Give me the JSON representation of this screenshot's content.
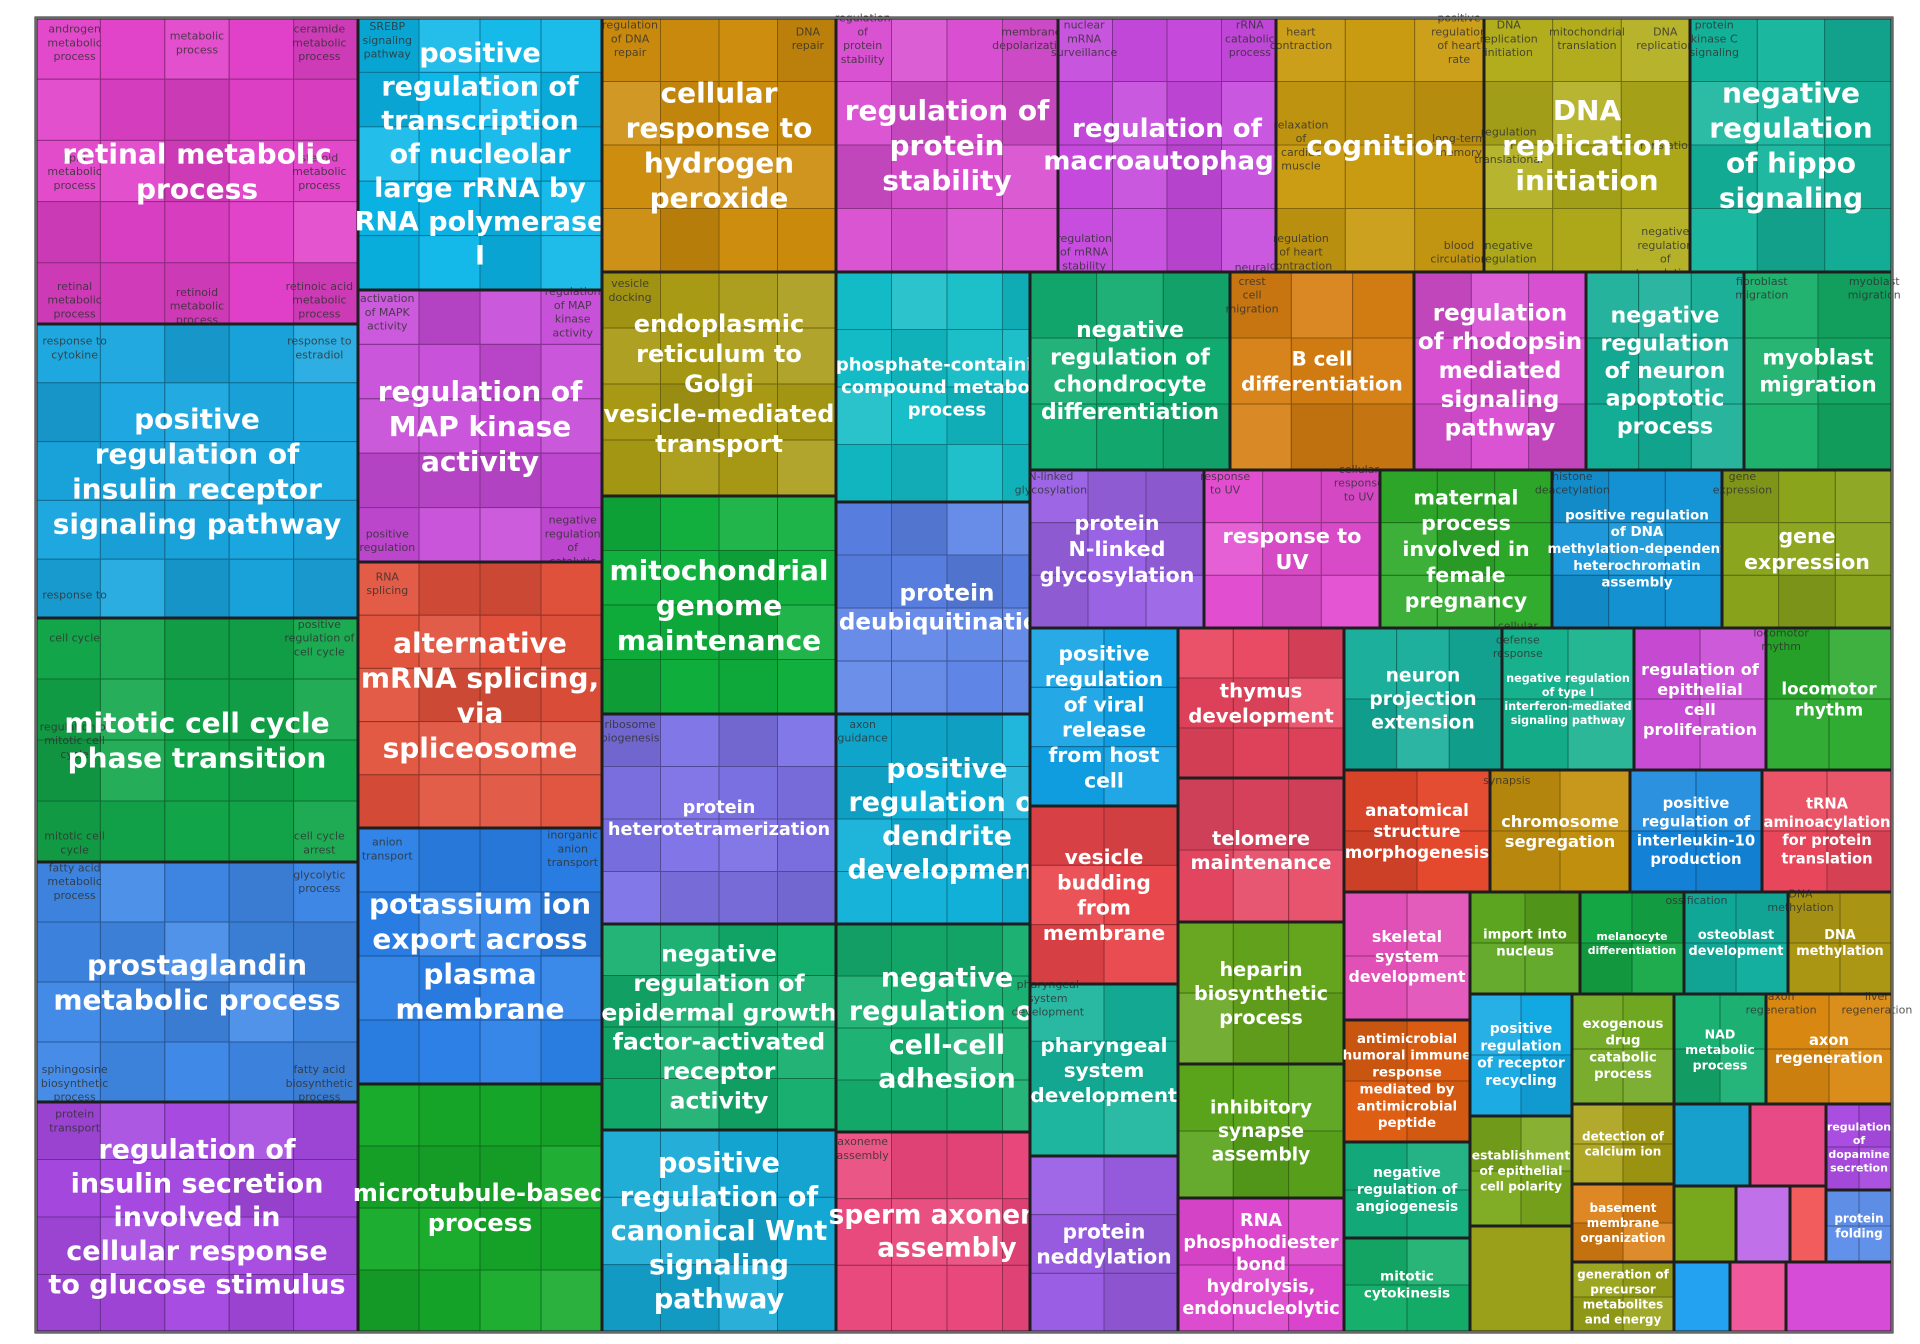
{
  "chart_data": {
    "type": "treemap",
    "title": "",
    "groups": [
      {
        "name": "retinal metabolic process",
        "color": "#e040c8",
        "subterms": [
          "androgen metabolic process",
          "ceramide metabolic process",
          "retinal metabolic process",
          "retinoic acid metabolic process",
          "lipid metabolic process",
          "steroid metabolic process",
          "metabolic process",
          "retinoid metabolic process"
        ]
      },
      {
        "name": "positive regulation of insulin receptor signaling pathway",
        "color": "#1aa6df",
        "subterms": [
          "response to cytokine",
          "response to estradiol",
          "response to"
        ]
      },
      {
        "name": "mitotic cell cycle phase transition",
        "color": "#12a64a",
        "subterms": [
          "cell cycle",
          "positive regulation of cell cycle",
          "mitotic cell cycle",
          "cell cycle arrest",
          "regulation of mitotic cell cycle"
        ]
      },
      {
        "name": "prostaglandin metabolic process",
        "color": "#3f88e6",
        "subterms": [
          "fatty acid metabolic process",
          "glycolytic process",
          "sphingosine biosynthetic process",
          "fatty acid biosynthetic process"
        ]
      },
      {
        "name": "regulation of insulin secretion involved in cellular response to glucose stimulus",
        "color": "#a548e0",
        "subterms": [
          "protein transport"
        ]
      },
      {
        "name": "positive regulation of transcription of nucleolar large rRNA by RNA polymerase I",
        "color": "#0ab6e8",
        "subterms": [
          "SREBP signaling pathway"
        ]
      },
      {
        "name": "regulation of MAP kinase activity",
        "color": "#c64ad8",
        "subterms": [
          "activation of MAPK activity",
          "regulation of MAP kinase activity",
          "positive regulation",
          "negative regulation of catalytic activity"
        ]
      },
      {
        "name": "alternative mRNA splicing, via spliceosome",
        "color": "#e0503a",
        "subterms": [
          "RNA splicing"
        ]
      },
      {
        "name": "potassium ion export across plasma membrane",
        "color": "#2a7fe6",
        "subterms": [
          "anion transport",
          "inorganic anion transport"
        ]
      },
      {
        "name": "microtubule-based process",
        "color": "#16aa2a",
        "subterms": []
      },
      {
        "name": "cellular response to hydrogen peroxide",
        "color": "#cc8c0c",
        "subterms": [
          "regulation of DNA repair",
          "DNA repair"
        ]
      },
      {
        "name": "endoplasmic reticulum to Golgi vesicle-mediated transport",
        "color": "#a89a14",
        "subterms": [
          "vesicle docking"
        ]
      },
      {
        "name": "mitochondrial genome maintenance",
        "color": "#0eae3c",
        "subterms": []
      },
      {
        "name": "protein heterotetramerization",
        "color": "#7e72e6",
        "subterms": [
          "ribosome biogenesis"
        ]
      },
      {
        "name": "negative regulation of epidermal growth factor-activated receptor activity",
        "color": "#12ad6c",
        "subterms": []
      },
      {
        "name": "positive regulation of canonical Wnt signaling pathway",
        "color": "#14a8d4",
        "subterms": []
      },
      {
        "name": "regulation of protein stability",
        "color": "#d84ed0",
        "subterms": [
          "regulation of protein stability",
          "membrane depolarization"
        ]
      },
      {
        "name": "phosphate-containing compound metabolic process",
        "color": "#12bcc6",
        "subterms": []
      },
      {
        "name": "protein deubiquitination",
        "color": "#5a82e6",
        "subterms": []
      },
      {
        "name": "positive regulation of dendrite development",
        "color": "#10b0d8",
        "subterms": [
          "axon guidance"
        ]
      },
      {
        "name": "negative regulation of cell-cell adhesion",
        "color": "#14ae6e",
        "subterms": []
      },
      {
        "name": "sperm axoneme assembly",
        "color": "#e8457a",
        "subterms": [
          "axoneme assembly"
        ]
      },
      {
        "name": "regulation of macroautophagy",
        "color": "#c448dc",
        "subterms": [
          "nuclear mRNA surveillance",
          "rRNA catabolic process",
          "regulation of mRNA stability"
        ]
      },
      {
        "name": "cognition",
        "color": "#c99b10",
        "subterms": [
          "heart contraction",
          "positive regulation of heart rate",
          "regulation of heart contraction",
          "blood circulation",
          "relaxation of cardiac muscle",
          "long-term memory"
        ]
      },
      {
        "name": "DNA replication initiation",
        "color": "#b0ac1a",
        "subterms": [
          "DNA replication initiation",
          "DNA replication",
          "negative regulation",
          "negative regulation of translation",
          "regulation of translational",
          "translation",
          "mitochondrial translation"
        ]
      },
      {
        "name": "negative regulation of hippo signaling",
        "color": "#14b49c",
        "subterms": [
          "protein kinase C signaling"
        ]
      },
      {
        "name": "negative regulation of chondrocyte differentiation",
        "color": "#12ac70",
        "subterms": []
      },
      {
        "name": "B cell differentiation",
        "color": "#d67f12",
        "subterms": [
          "neural crest cell migration"
        ]
      },
      {
        "name": "regulation of rhodopsin mediated signaling pathway",
        "color": "#d84ed2",
        "subterms": []
      },
      {
        "name": "negative regulation of neuron apoptotic process",
        "color": "#12ac94",
        "subterms": []
      },
      {
        "name": "myoblast migration",
        "color": "#14ae66",
        "subterms": [
          "fibroblast migration",
          "myoblast migration"
        ]
      },
      {
        "name": "protein N-linked glycosylation",
        "color": "#9a62e4",
        "subterms": [
          "N-linked glycosylation"
        ]
      },
      {
        "name": "response to UV",
        "color": "#e24ed0",
        "subterms": [
          "response to UV",
          "cellular response to UV"
        ]
      },
      {
        "name": "maternal process involved in female pregnancy",
        "color": "#2eaa2a",
        "subterms": []
      },
      {
        "name": "positive regulation of DNA methylation-dependent heterochromatin assembly",
        "color": "#1494d6",
        "subterms": [
          "histone deacetylation"
        ]
      },
      {
        "name": "gene expression",
        "color": "#8aa41c",
        "subterms": [
          "gene expression"
        ]
      },
      {
        "name": "positive regulation of viral release from host cell",
        "color": "#10a0e4",
        "subterms": []
      },
      {
        "name": "thymus development",
        "color": "#e8455e",
        "subterms": []
      },
      {
        "name": "neuron projection extension",
        "color": "#12ac98",
        "subterms": []
      },
      {
        "name": "negative regulation of type I interferon-mediated signaling pathway",
        "color": "#14b08c",
        "subterms": [
          "cellular defense response"
        ]
      },
      {
        "name": "regulation of epithelial cell proliferation",
        "color": "#c84ad4",
        "subterms": []
      },
      {
        "name": "locomotor rhythm",
        "color": "#28a82a",
        "subterms": [
          "locomotor rhythm"
        ]
      },
      {
        "name": "vesicle budding from membrane",
        "color": "#e8454a",
        "subterms": []
      },
      {
        "name": "telomere maintenance",
        "color": "#e64662",
        "subterms": []
      },
      {
        "name": "pharyngeal system development",
        "color": "#14b29a",
        "subterms": [
          "pharyngeal system development"
        ]
      },
      {
        "name": "protein neddylation",
        "color": "#9a5ee4",
        "subterms": []
      },
      {
        "name": "heparin biosynthetic process",
        "color": "#64a41c",
        "subterms": []
      },
      {
        "name": "inhibitory synapse assembly",
        "color": "#5aa41c",
        "subterms": []
      },
      {
        "name": "RNA phosphodiester bond hydrolysis, endonucleolytic",
        "color": "#da44cc",
        "subterms": []
      },
      {
        "name": "anatomical structure morphogenesis",
        "color": "#e4472c",
        "subterms": []
      },
      {
        "name": "chromosome segregation",
        "color": "#c4920e",
        "subterms": [
          "synapsis"
        ]
      },
      {
        "name": "positive regulation of interleukin-10 production",
        "color": "#1486dc",
        "subterms": []
      },
      {
        "name": "tRNA aminoacylation for protein translation",
        "color": "#e8465a",
        "subterms": []
      },
      {
        "name": "skeletal system development",
        "color": "#e048b4",
        "subterms": []
      },
      {
        "name": "import into nucleus",
        "color": "#58a41c",
        "subterms": []
      },
      {
        "name": "melanocyte differentiation",
        "color": "#14a846",
        "subterms": []
      },
      {
        "name": "osteoblast development",
        "color": "#12ae9e",
        "subterms": [
          "ossification"
        ]
      },
      {
        "name": "DNA methylation",
        "color": "#b09a14",
        "subterms": [
          "DNA methylation"
        ]
      },
      {
        "name": "antimicrobial humoral immune response mediated by antimicrobial peptide",
        "color": "#de5e12",
        "subterms": []
      },
      {
        "name": "positive regulation of receptor recycling",
        "color": "#12a8e2",
        "subterms": []
      },
      {
        "name": "exogenous drug catabolic process",
        "color": "#6ea61c",
        "subterms": []
      },
      {
        "name": "NAD metabolic process",
        "color": "#14ae6e",
        "subterms": []
      },
      {
        "name": "axon regeneration",
        "color": "#d88810",
        "subterms": [
          "axon regeneration",
          "liver regeneration"
        ]
      },
      {
        "name": "negative regulation of angiogenesis",
        "color": "#14ad7c",
        "subterms": []
      },
      {
        "name": "mitotic cytokinesis",
        "color": "#14ae6a",
        "subterms": []
      },
      {
        "name": "establishment of epithelial cell polarity",
        "color": "#7aa81c",
        "subterms": []
      },
      {
        "name": "detection of calcium ion",
        "color": "#a8a014",
        "subterms": []
      },
      {
        "name": "basement membrane organization",
        "color": "#da7e12",
        "subterms": []
      },
      {
        "name": "generation of precursor metabolites and energy",
        "color": "#98a218",
        "subterms": []
      },
      {
        "name": "regulation of dopamine secretion",
        "color": "#a84ae0",
        "subterms": []
      },
      {
        "name": "protein folding",
        "color": "#6090ea",
        "subterms": []
      }
    ]
  }
}
